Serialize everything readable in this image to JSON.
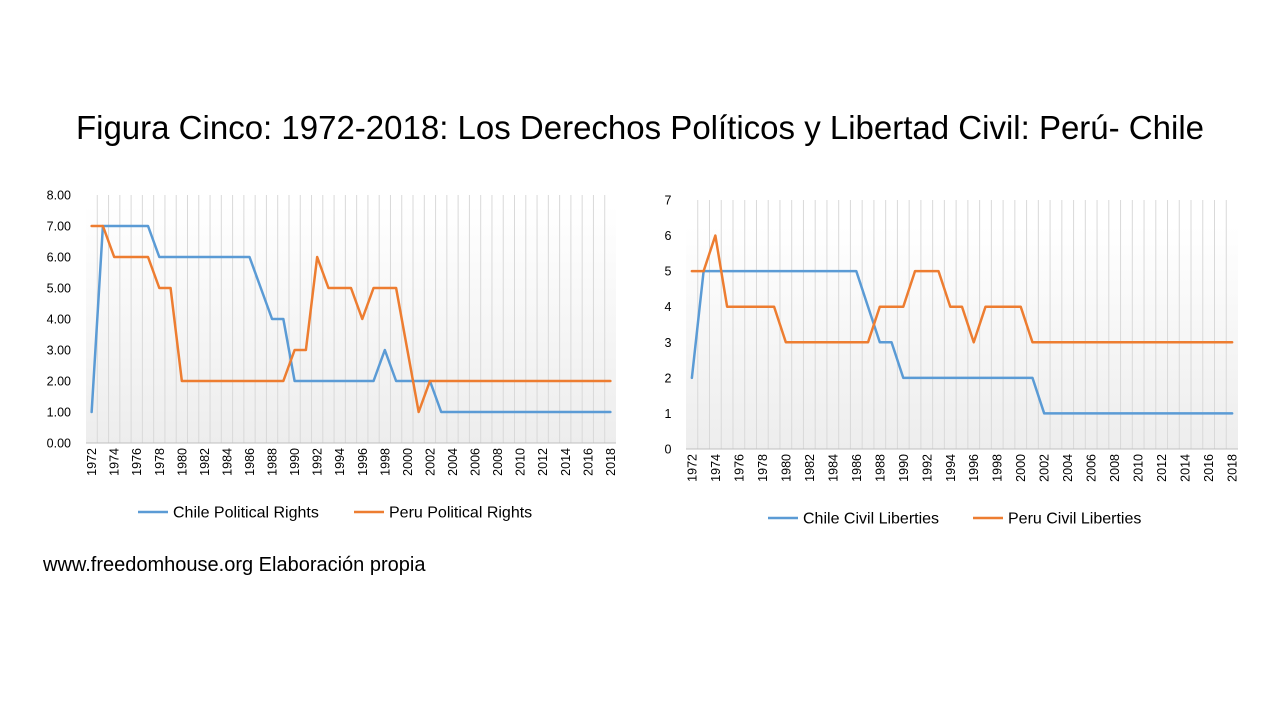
{
  "title": "Figura Cinco: 1972-2018: Los Derechos Políticos y Libertad Civil: Perú- Chile",
  "source": "www.freedomhouse.org Elaboración propia",
  "colors": {
    "chile": "#5b9bd5",
    "peru": "#ed7d31",
    "grid": "#d9d9d9",
    "axis": "#bfbfbf"
  },
  "chart_data": [
    {
      "type": "line",
      "x": [
        1972,
        1973,
        1974,
        1975,
        1976,
        1977,
        1978,
        1979,
        1980,
        1981,
        1982,
        1983,
        1984,
        1985,
        1986,
        1987,
        1988,
        1989,
        1990,
        1991,
        1992,
        1993,
        1994,
        1995,
        1996,
        1997,
        1998,
        1999,
        2000,
        2001,
        2002,
        2003,
        2004,
        2005,
        2006,
        2007,
        2008,
        2009,
        2010,
        2011,
        2012,
        2013,
        2014,
        2015,
        2016,
        2017,
        2018
      ],
      "xtick_labels": [
        "1972",
        "1974",
        "1976",
        "1978",
        "1980",
        "1982",
        "1984",
        "1986",
        "1988",
        "1990",
        "1992",
        "1994",
        "1996",
        "1998",
        "2000",
        "2002",
        "2004",
        "2006",
        "2008",
        "2010",
        "2012",
        "2014",
        "2016",
        "2018"
      ],
      "ytick_labels": [
        "0.00",
        "1.00",
        "2.00",
        "3.00",
        "4.00",
        "5.00",
        "6.00",
        "7.00",
        "8.00"
      ],
      "ylim": [
        0,
        8
      ],
      "grid": "vertical",
      "legend_position": "bottom",
      "series": [
        {
          "name": "Chile Political Rights",
          "color": "#5b9bd5",
          "values": [
            1,
            7,
            7,
            7,
            7,
            7,
            6,
            6,
            6,
            6,
            6,
            6,
            6,
            6,
            6,
            5,
            4,
            4,
            2,
            2,
            2,
            2,
            2,
            2,
            2,
            2,
            3,
            2,
            2,
            2,
            2,
            1,
            1,
            1,
            1,
            1,
            1,
            1,
            1,
            1,
            1,
            1,
            1,
            1,
            1,
            1,
            1
          ]
        },
        {
          "name": "Peru Political Rights",
          "color": "#ed7d31",
          "values": [
            7,
            7,
            6,
            6,
            6,
            6,
            5,
            5,
            2,
            2,
            2,
            2,
            2,
            2,
            2,
            2,
            2,
            2,
            3,
            3,
            6,
            5,
            5,
            5,
            4,
            5,
            5,
            5,
            3,
            1,
            2,
            2,
            2,
            2,
            2,
            2,
            2,
            2,
            2,
            2,
            2,
            2,
            2,
            2,
            2,
            2,
            2
          ]
        }
      ]
    },
    {
      "type": "line",
      "x": [
        1972,
        1973,
        1974,
        1975,
        1976,
        1977,
        1978,
        1979,
        1980,
        1981,
        1982,
        1983,
        1984,
        1985,
        1986,
        1987,
        1988,
        1989,
        1990,
        1991,
        1992,
        1993,
        1994,
        1995,
        1996,
        1997,
        1998,
        1999,
        2000,
        2001,
        2002,
        2003,
        2004,
        2005,
        2006,
        2007,
        2008,
        2009,
        2010,
        2011,
        2012,
        2013,
        2014,
        2015,
        2016,
        2017,
        2018
      ],
      "xtick_labels": [
        "1972",
        "1974",
        "1976",
        "1978",
        "1980",
        "1982",
        "1984",
        "1986",
        "1988",
        "1990",
        "1992",
        "1994",
        "1996",
        "1998",
        "2000",
        "2002",
        "2004",
        "2006",
        "2008",
        "2010",
        "2012",
        "2014",
        "2016",
        "2018"
      ],
      "ytick_labels": [
        "0",
        "1",
        "2",
        "3",
        "4",
        "5",
        "6",
        "7"
      ],
      "ylim": [
        0,
        7
      ],
      "grid": "vertical",
      "legend_position": "bottom",
      "series": [
        {
          "name": "Chile Civil Liberties",
          "color": "#5b9bd5",
          "values": [
            2,
            5,
            5,
            5,
            5,
            5,
            5,
            5,
            5,
            5,
            5,
            5,
            5,
            5,
            5,
            4,
            3,
            3,
            2,
            2,
            2,
            2,
            2,
            2,
            2,
            2,
            2,
            2,
            2,
            2,
            1,
            1,
            1,
            1,
            1,
            1,
            1,
            1,
            1,
            1,
            1,
            1,
            1,
            1,
            1,
            1,
            1
          ]
        },
        {
          "name": "Peru Civil Liberties",
          "color": "#ed7d31",
          "values": [
            5,
            5,
            6,
            4,
            4,
            4,
            4,
            4,
            3,
            3,
            3,
            3,
            3,
            3,
            3,
            3,
            4,
            4,
            4,
            5,
            5,
            5,
            4,
            4,
            3,
            4,
            4,
            4,
            4,
            3,
            3,
            3,
            3,
            3,
            3,
            3,
            3,
            3,
            3,
            3,
            3,
            3,
            3,
            3,
            3,
            3,
            3
          ]
        }
      ]
    }
  ]
}
